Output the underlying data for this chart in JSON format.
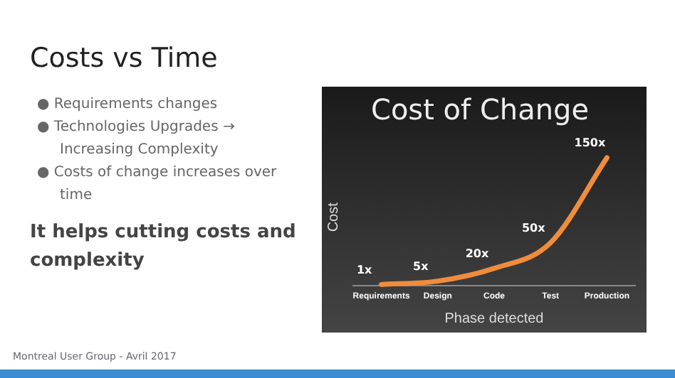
{
  "chart_data": [
    {
      "type": "other",
      "title": "Costs vs Time",
      "annotations": [
        "●  Requirements changes",
        "●  Technologies Upgrades → Increasing Complexity",
        "●  Costs of change increases over time",
        "It helps cutting costs and complexity",
        "Montreal User Group - Avril 2017"
      ]
    },
    {
      "type": "line",
      "title": "Cost of Change",
      "xlabel": "Phase detected",
      "ylabel": "Cost",
      "categories": [
        "Requirements",
        "Design",
        "Code",
        "Test",
        "Production"
      ],
      "series": [
        {
          "color": "#f08c3c",
          "values": [
            1,
            5,
            20,
            50,
            150
          ],
          "value_labels": [
            "1x",
            "5x",
            "20x",
            "50x",
            "150x"
          ]
        }
      ],
      "marker": "none",
      "grid": false,
      "legend": false
    }
  ]
}
